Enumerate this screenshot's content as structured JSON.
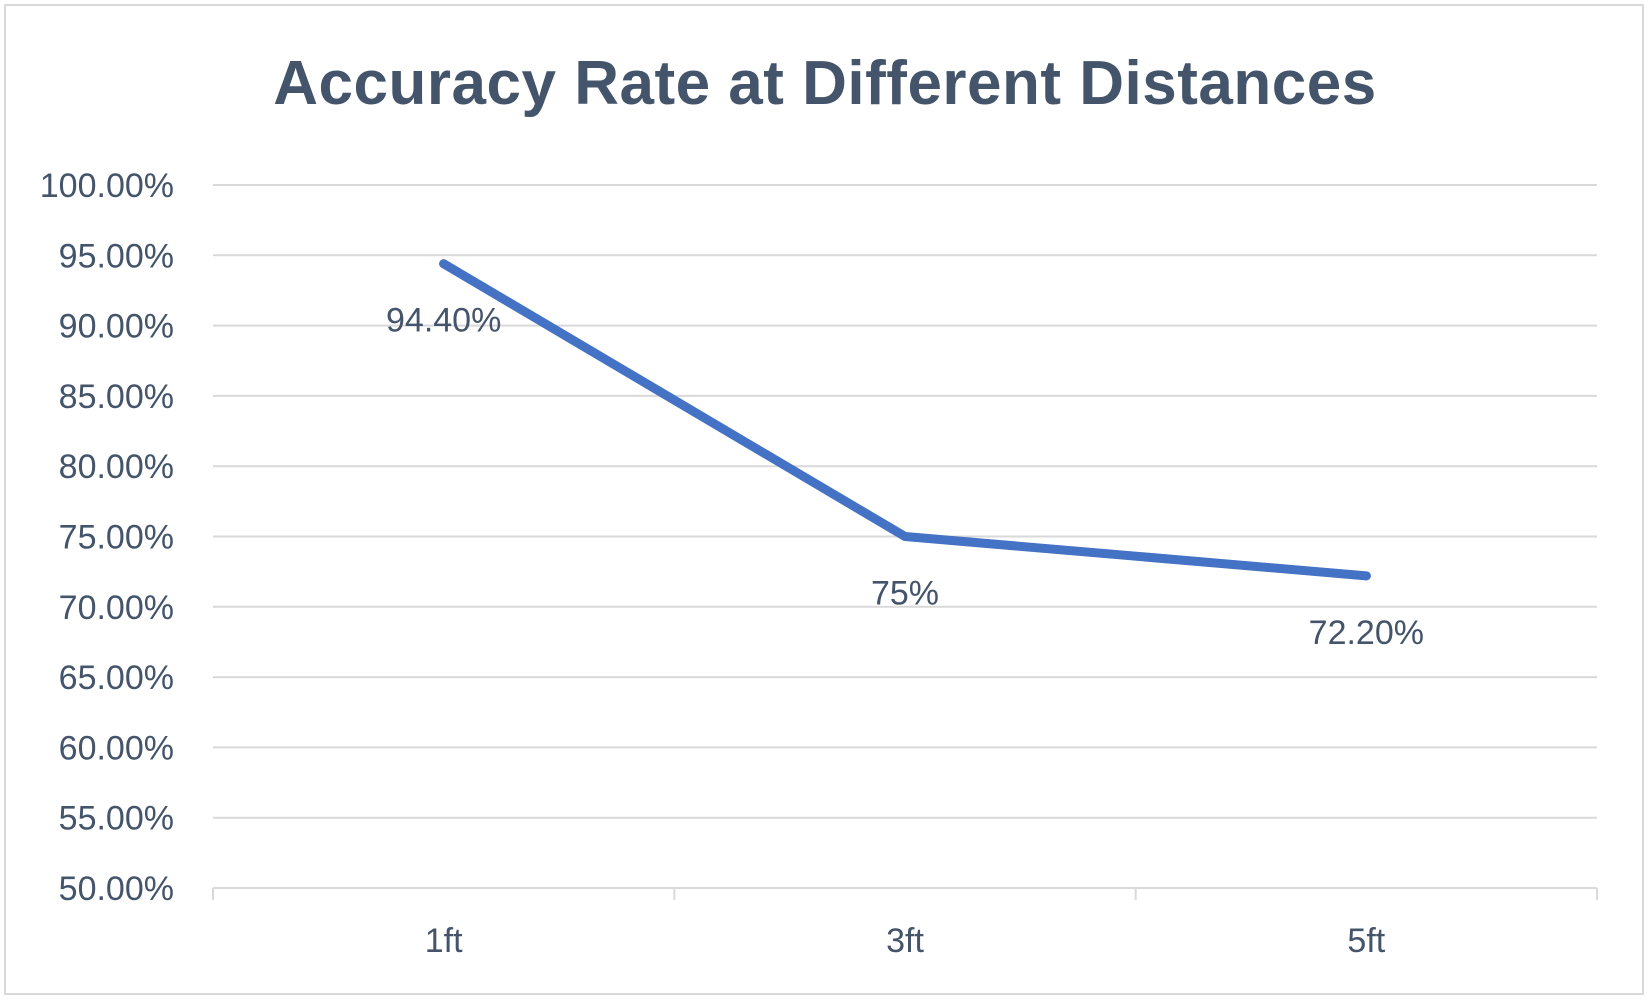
{
  "chart_data": {
    "type": "line",
    "title": "Accuracy Rate at Different Distances",
    "xlabel": "",
    "ylabel": "",
    "categories": [
      "1ft",
      "3ft",
      "5ft"
    ],
    "series": [
      {
        "values": [
          94.4,
          75.0,
          72.2
        ],
        "data_labels": [
          "94.40%",
          "75%",
          "72.20%"
        ],
        "color": "#4472c4"
      }
    ],
    "ylim": [
      50,
      100
    ],
    "y_ticks": [
      "50.00%",
      "55.00%",
      "60.00%",
      "65.00%",
      "70.00%",
      "75.00%",
      "80.00%",
      "85.00%",
      "90.00%",
      "95.00%",
      "100.00%"
    ],
    "grid": true,
    "legend": "none",
    "colors": {
      "line": "#4472c4",
      "text": "#44546a",
      "grid": "#d9d9d9"
    }
  }
}
